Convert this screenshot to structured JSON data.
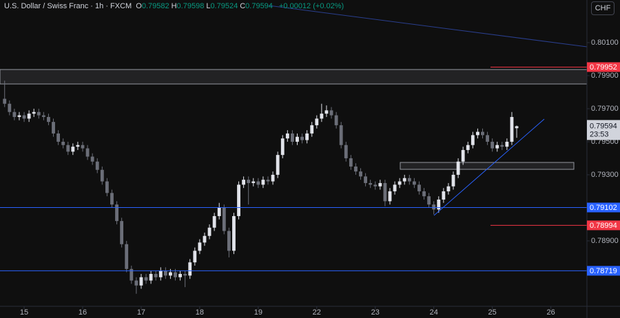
{
  "chart_data": {
    "type": "candlestick",
    "title": "U.S. Dollar / Swiss Franc · 1h · FXCM",
    "ohlc_header": [
      {
        "key": "O",
        "value": 0.79582
      },
      {
        "key": "H",
        "value": 0.79598
      },
      {
        "key": "L",
        "value": 0.79524
      },
      {
        "key": "C",
        "value": 0.79594
      }
    ],
    "change": "+0.00012 (+0.02%)",
    "currency": "CHF",
    "x": [
      -8,
      -6,
      -4,
      -2,
      0,
      2,
      4,
      6,
      8,
      10,
      12,
      14,
      16,
      18,
      20,
      22,
      24,
      26,
      28,
      30,
      32,
      34,
      36,
      38,
      40,
      42,
      44,
      46,
      48,
      50,
      52,
      54,
      56,
      58,
      60,
      62,
      64,
      66,
      68,
      70,
      72,
      74,
      76,
      78,
      80,
      82,
      84,
      86,
      88,
      90,
      92,
      94,
      96,
      98,
      100,
      102,
      104,
      106,
      108,
      110,
      112,
      114,
      116,
      118,
      120,
      122,
      124,
      126,
      128,
      130,
      132,
      134,
      136,
      138,
      140,
      142,
      144,
      146,
      148,
      150,
      152,
      154,
      156,
      158,
      160,
      162,
      164,
      166,
      168,
      170,
      172,
      174,
      176,
      178,
      180,
      182,
      184,
      186,
      188,
      190,
      192,
      194,
      196,
      198,
      200,
      202
    ],
    "open": [
      0.7976,
      0.7973,
      0.7968,
      0.7965,
      0.7966,
      0.7964,
      0.7967,
      0.7968,
      0.7966,
      0.7965,
      0.7962,
      0.7955,
      0.795,
      0.7948,
      0.7944,
      0.7947,
      0.7948,
      0.7946,
      0.7941,
      0.7938,
      0.7933,
      0.7926,
      0.7919,
      0.7912,
      0.7902,
      0.7888,
      0.7873,
      0.7866,
      0.7863,
      0.7868,
      0.7866,
      0.787,
      0.7868,
      0.7872,
      0.7869,
      0.7871,
      0.7868,
      0.787,
      0.7869,
      0.7877,
      0.7884,
      0.7889,
      0.7893,
      0.7898,
      0.7905,
      0.791,
      0.7896,
      0.7884,
      0.7905,
      0.7924,
      0.7927,
      0.7925,
      0.7926,
      0.7924,
      0.7927,
      0.7926,
      0.793,
      0.7942,
      0.7952,
      0.7955,
      0.795,
      0.7953,
      0.7951,
      0.7955,
      0.796,
      0.7964,
      0.7967,
      0.7969,
      0.7966,
      0.796,
      0.7948,
      0.794,
      0.7935,
      0.7932,
      0.7929,
      0.7925,
      0.7924,
      0.7923,
      0.7925,
      0.7914,
      0.792,
      0.7924,
      0.7926,
      0.7928,
      0.7926,
      0.7924,
      0.792,
      0.7917,
      0.7912,
      0.7909,
      0.7915,
      0.792,
      0.7923,
      0.793,
      0.7938,
      0.7945,
      0.7948,
      0.7954,
      0.7956,
      0.7954,
      0.795,
      0.7946,
      0.7948,
      0.7947,
      0.795,
      0.79582
    ],
    "high": [
      0.7987,
      0.7975,
      0.797,
      0.7968,
      0.7968,
      0.7969,
      0.797,
      0.797,
      0.7968,
      0.7967,
      0.7964,
      0.7957,
      0.7952,
      0.795,
      0.7949,
      0.795,
      0.795,
      0.7948,
      0.7943,
      0.794,
      0.7935,
      0.7928,
      0.7921,
      0.7914,
      0.7904,
      0.789,
      0.7875,
      0.7868,
      0.787,
      0.787,
      0.7872,
      0.7872,
      0.7874,
      0.7874,
      0.7873,
      0.7873,
      0.7872,
      0.7872,
      0.7879,
      0.7886,
      0.7891,
      0.7895,
      0.79,
      0.7907,
      0.7913,
      0.7912,
      0.7898,
      0.7907,
      0.7926,
      0.7929,
      0.7929,
      0.7928,
      0.7928,
      0.7929,
      0.7929,
      0.7932,
      0.7944,
      0.7954,
      0.7957,
      0.7957,
      0.7955,
      0.7955,
      0.7957,
      0.7962,
      0.7966,
      0.7973,
      0.7972,
      0.7971,
      0.7968,
      0.7962,
      0.795,
      0.7942,
      0.7937,
      0.7934,
      0.7931,
      0.7927,
      0.7926,
      0.7927,
      0.7927,
      0.7922,
      0.7926,
      0.7928,
      0.793,
      0.793,
      0.7928,
      0.7926,
      0.7922,
      0.7919,
      0.7914,
      0.7917,
      0.7922,
      0.7925,
      0.7932,
      0.794,
      0.7947,
      0.795,
      0.7956,
      0.7958,
      0.7958,
      0.7956,
      0.7952,
      0.795,
      0.795,
      0.7952,
      0.7968,
      0.79598
    ],
    "low": [
      0.7971,
      0.7966,
      0.7963,
      0.7963,
      0.7962,
      0.7962,
      0.7965,
      0.7964,
      0.7963,
      0.796,
      0.7953,
      0.7948,
      0.7946,
      0.7942,
      0.7942,
      0.7945,
      0.7944,
      0.7939,
      0.7936,
      0.7931,
      0.7924,
      0.7917,
      0.791,
      0.79,
      0.7886,
      0.7871,
      0.7864,
      0.7858,
      0.7861,
      0.7864,
      0.7864,
      0.7866,
      0.7866,
      0.7867,
      0.7867,
      0.7866,
      0.7866,
      0.7862,
      0.7867,
      0.7875,
      0.7882,
      0.7887,
      0.7891,
      0.7896,
      0.7903,
      0.7894,
      0.788,
      0.7882,
      0.7903,
      0.7922,
      0.7912,
      0.7923,
      0.7922,
      0.7922,
      0.7924,
      0.7924,
      0.7928,
      0.794,
      0.795,
      0.7948,
      0.7948,
      0.7949,
      0.7949,
      0.7953,
      0.7958,
      0.7962,
      0.7965,
      0.7964,
      0.7958,
      0.7946,
      0.7938,
      0.7933,
      0.793,
      0.7927,
      0.7923,
      0.7922,
      0.7921,
      0.7921,
      0.7911,
      0.7912,
      0.7918,
      0.7922,
      0.7924,
      0.7924,
      0.7922,
      0.7918,
      0.7915,
      0.791,
      0.7906,
      0.7907,
      0.7913,
      0.7918,
      0.7921,
      0.7928,
      0.7936,
      0.7943,
      0.7946,
      0.7952,
      0.7952,
      0.7948,
      0.7944,
      0.7944,
      0.7945,
      0.7945,
      0.7948,
      0.79524
    ],
    "close": [
      0.7973,
      0.7968,
      0.7965,
      0.7966,
      0.7964,
      0.7967,
      0.7968,
      0.7966,
      0.7965,
      0.7962,
      0.7955,
      0.795,
      0.7948,
      0.7944,
      0.7947,
      0.7948,
      0.7946,
      0.7941,
      0.7938,
      0.7933,
      0.7926,
      0.7919,
      0.7912,
      0.7902,
      0.7888,
      0.7873,
      0.7866,
      0.7863,
      0.7868,
      0.7866,
      0.787,
      0.7868,
      0.7872,
      0.7869,
      0.7871,
      0.7868,
      0.787,
      0.7869,
      0.7877,
      0.7884,
      0.7889,
      0.7893,
      0.7898,
      0.7905,
      0.791,
      0.7896,
      0.7884,
      0.7905,
      0.7924,
      0.7927,
      0.7925,
      0.7926,
      0.7924,
      0.7927,
      0.7926,
      0.793,
      0.7942,
      0.7952,
      0.7955,
      0.795,
      0.7953,
      0.7951,
      0.7955,
      0.796,
      0.7964,
      0.7967,
      0.7969,
      0.7966,
      0.796,
      0.7948,
      0.794,
      0.7935,
      0.7932,
      0.7929,
      0.7925,
      0.7924,
      0.7923,
      0.7925,
      0.7914,
      0.792,
      0.7924,
      0.7926,
      0.7928,
      0.7926,
      0.7924,
      0.792,
      0.7917,
      0.7912,
      0.7909,
      0.7915,
      0.792,
      0.7923,
      0.793,
      0.7938,
      0.7945,
      0.7948,
      0.7954,
      0.7956,
      0.7954,
      0.795,
      0.7946,
      0.7948,
      0.7947,
      0.795,
      0.7965,
      0.79594
    ],
    "up_color": "#e1e3ea",
    "down_color": "#6b6e78",
    "xlim": [
      -9.9,
      230.8
    ],
    "xticks": [
      {
        "value": 0,
        "label": "15"
      },
      {
        "value": 24,
        "label": "16"
      },
      {
        "value": 48,
        "label": "17"
      },
      {
        "value": 72,
        "label": "18"
      },
      {
        "value": 96,
        "label": "19"
      },
      {
        "value": 120,
        "label": "22"
      },
      {
        "value": 144,
        "label": "23"
      },
      {
        "value": 168,
        "label": "24"
      },
      {
        "value": 192,
        "label": "25"
      },
      {
        "value": 216,
        "label": "26"
      }
    ],
    "ylim": [
      0.78504,
      0.80358
    ],
    "yticks": [
      {
        "value": 0.789,
        "label": "0.78900"
      },
      {
        "value": 0.793,
        "label": "0.79300"
      },
      {
        "value": 0.795,
        "label": "0.79500"
      },
      {
        "value": 0.797,
        "label": "0.79700"
      },
      {
        "value": 0.799,
        "label": "0.79900"
      },
      {
        "value": 0.801,
        "label": "0.80100"
      }
    ],
    "grid": false,
    "levels": [
      {
        "value": 0.79952,
        "label": "0.79952",
        "color": "#f23645",
        "line": "short"
      },
      {
        "value": 0.79102,
        "label": "0.79102",
        "color": "#2962ff",
        "line": "full"
      },
      {
        "value": 0.78994,
        "label": "0.78994",
        "color": "#f23645",
        "line": "short"
      },
      {
        "value": 0.78719,
        "label": "0.78719",
        "color": "#2962ff",
        "line": "full"
      }
    ],
    "last_price": {
      "value": 0.79594,
      "label": "0.79594",
      "countdown": "23:53"
    }
  }
}
